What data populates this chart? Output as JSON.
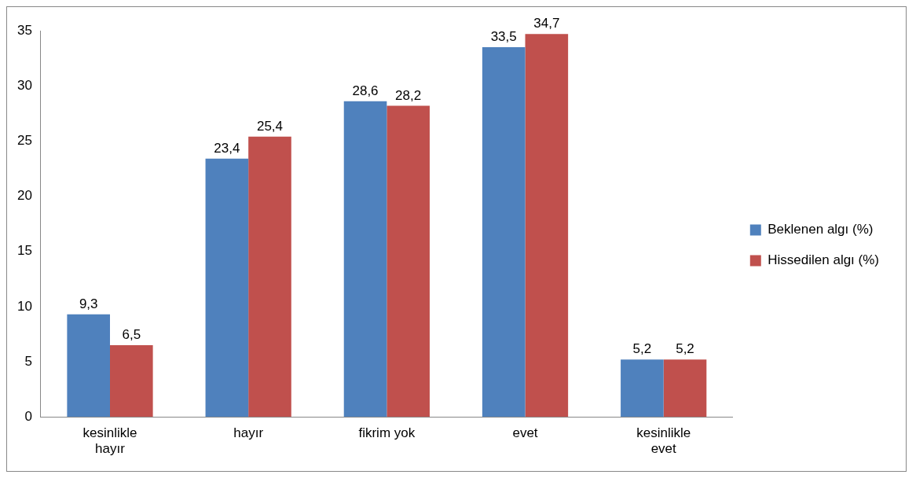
{
  "chart_data": {
    "type": "bar",
    "categories": [
      "kesinlikle hayır",
      "hayır",
      "fikrim yok",
      "evet",
      "kesinlikle evet"
    ],
    "series": [
      {
        "name": "Beklenen algı (%)",
        "color": "#4f81bd",
        "values": [
          9.3,
          23.4,
          28.6,
          33.5,
          5.2
        ],
        "value_labels": [
          "9,3",
          "23,4",
          "28,6",
          "33,5",
          "5,2"
        ]
      },
      {
        "name": "Hissedilen algı (%)",
        "color": "#c0504d",
        "values": [
          6.5,
          25.4,
          28.2,
          34.7,
          5.2
        ],
        "value_labels": [
          "6,5",
          "25,4",
          "28,2",
          "34,7",
          "5,2"
        ]
      }
    ],
    "ylim": [
      0,
      35
    ],
    "yticks": [
      0,
      5,
      10,
      15,
      20,
      25,
      30,
      35
    ],
    "grid": false,
    "legend": "right"
  }
}
